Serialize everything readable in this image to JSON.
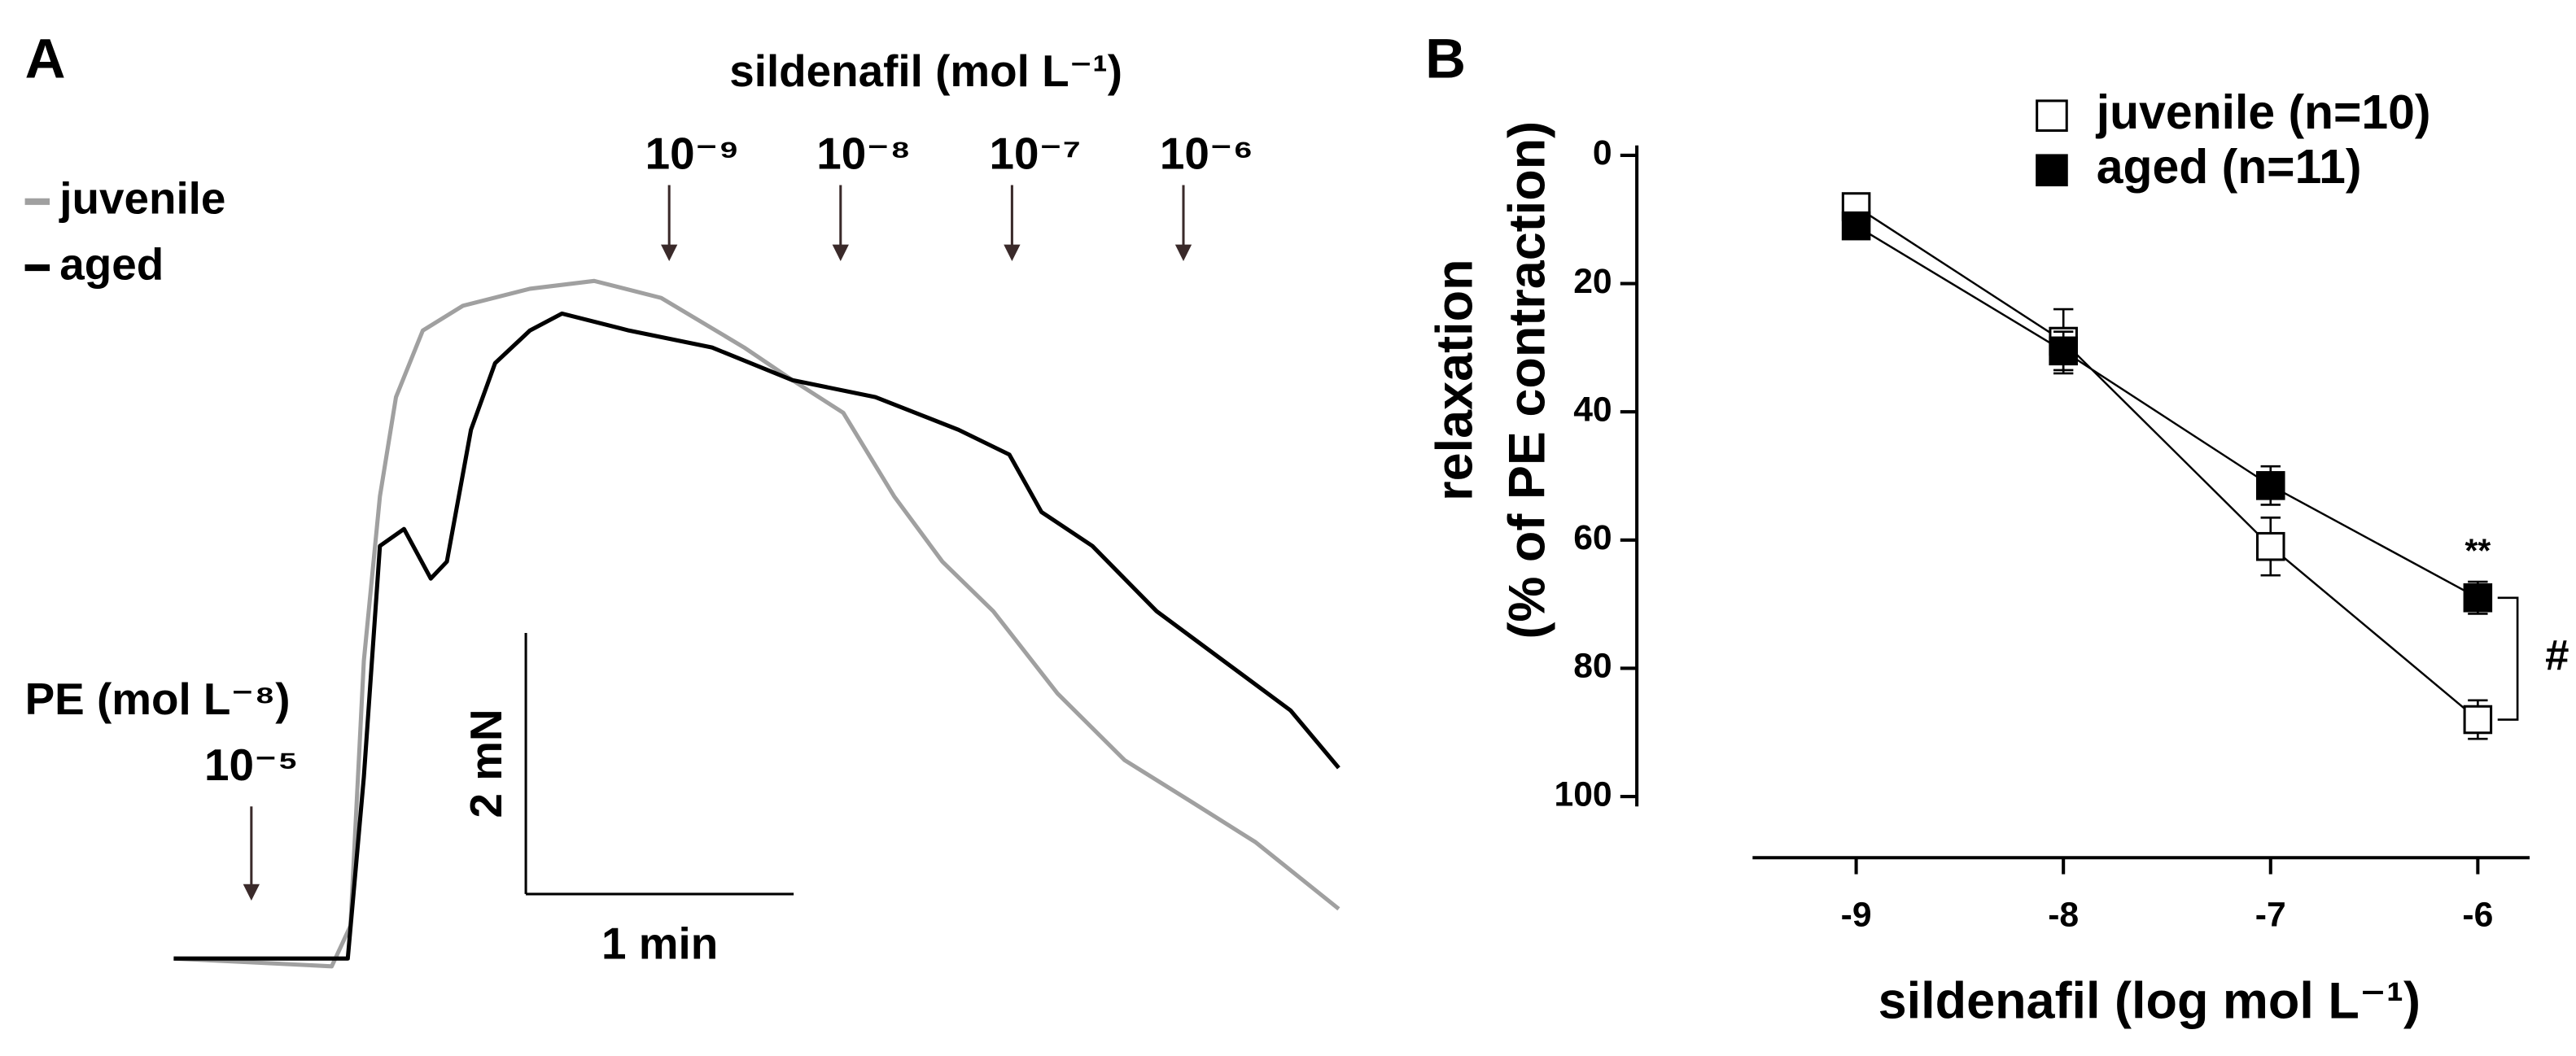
{
  "chart_data": [
    {
      "type": "trace",
      "label": "A",
      "series": [
        {
          "name": "juvenile",
          "color": "#a0a0a0",
          "x": [
            0,
            0.59,
            0.66,
            0.71,
            0.77,
            0.83,
            0.93,
            1.08,
            1.33,
            1.57,
            1.82,
            2.13,
            2.31,
            2.5,
            2.69,
            2.87,
            3.06,
            3.3,
            3.55,
            3.8,
            4.04,
            4.35
          ],
          "values": [
            0,
            -0.06,
            0.25,
            2.28,
            3.54,
            4.3,
            4.81,
            5.0,
            5.13,
            5.19,
            5.06,
            4.68,
            4.43,
            4.18,
            3.54,
            3.04,
            2.66,
            2.03,
            1.52,
            1.2,
            0.89,
            0.38
          ]
        },
        {
          "name": "aged",
          "color": "#000000",
          "x": [
            0,
            0.65,
            0.71,
            0.77,
            0.86,
            0.96,
            1.02,
            1.11,
            1.2,
            1.33,
            1.45,
            1.7,
            2.01,
            2.31,
            2.62,
            2.93,
            3.12,
            3.24,
            3.43,
            3.67,
            3.92,
            4.17,
            4.35
          ],
          "values": [
            0,
            0,
            1.39,
            3.16,
            3.29,
            2.91,
            3.04,
            4.05,
            4.56,
            4.81,
            4.94,
            4.81,
            4.68,
            4.43,
            4.3,
            4.05,
            3.86,
            3.42,
            3.16,
            2.66,
            2.28,
            1.9,
            1.46
          ]
        }
      ],
      "stimuli": [
        {
          "label": "PE (mol L⁻⁸)",
          "doses": [
            {
              "text": "10⁻⁵",
              "x": 0.29
            }
          ]
        },
        {
          "label": "sildenafil (mol L⁻¹)",
          "doses": [
            {
              "text": "10⁻⁹",
              "x": 1.85
            },
            {
              "text": "10⁻⁸",
              "x": 2.49
            },
            {
              "text": "10⁻⁷",
              "x": 3.13
            },
            {
              "text": "10⁻⁶",
              "x": 3.77
            }
          ]
        }
      ],
      "scalebar": {
        "y": 2,
        "y_label": "2 mN",
        "x": 1,
        "x_label": "1 min"
      }
    },
    {
      "type": "line",
      "label": "B",
      "x": [
        -9,
        -8,
        -7,
        -6
      ],
      "series": [
        {
          "name": "juvenile (n=10)",
          "color": "#000000",
          "marker_fill": "#ffffff",
          "values": [
            8,
            29,
            61,
            88
          ],
          "errors": [
            2,
            5,
            4.5,
            3
          ]
        },
        {
          "name": "aged (n=11)",
          "color": "#000000",
          "marker_fill": "#000000",
          "values": [
            11,
            30.5,
            51.5,
            69
          ],
          "errors": [
            1.5,
            3,
            3,
            2.5
          ]
        }
      ],
      "xlim": [
        -9.5,
        -5.75
      ],
      "xticks": [
        -9,
        -8,
        -7,
        -6
      ],
      "ylim": [
        100,
        0
      ],
      "yticks": [
        0,
        20,
        40,
        60,
        80,
        100
      ],
      "ylabel": [
        "relaxation",
        "(% of PE contraction)"
      ],
      "xlabel": "sildenafil (log mol L⁻¹)",
      "annotations": [
        {
          "text": "**",
          "x": -6,
          "y": 62
        },
        {
          "text": "#",
          "x": -6
        }
      ]
    }
  ]
}
